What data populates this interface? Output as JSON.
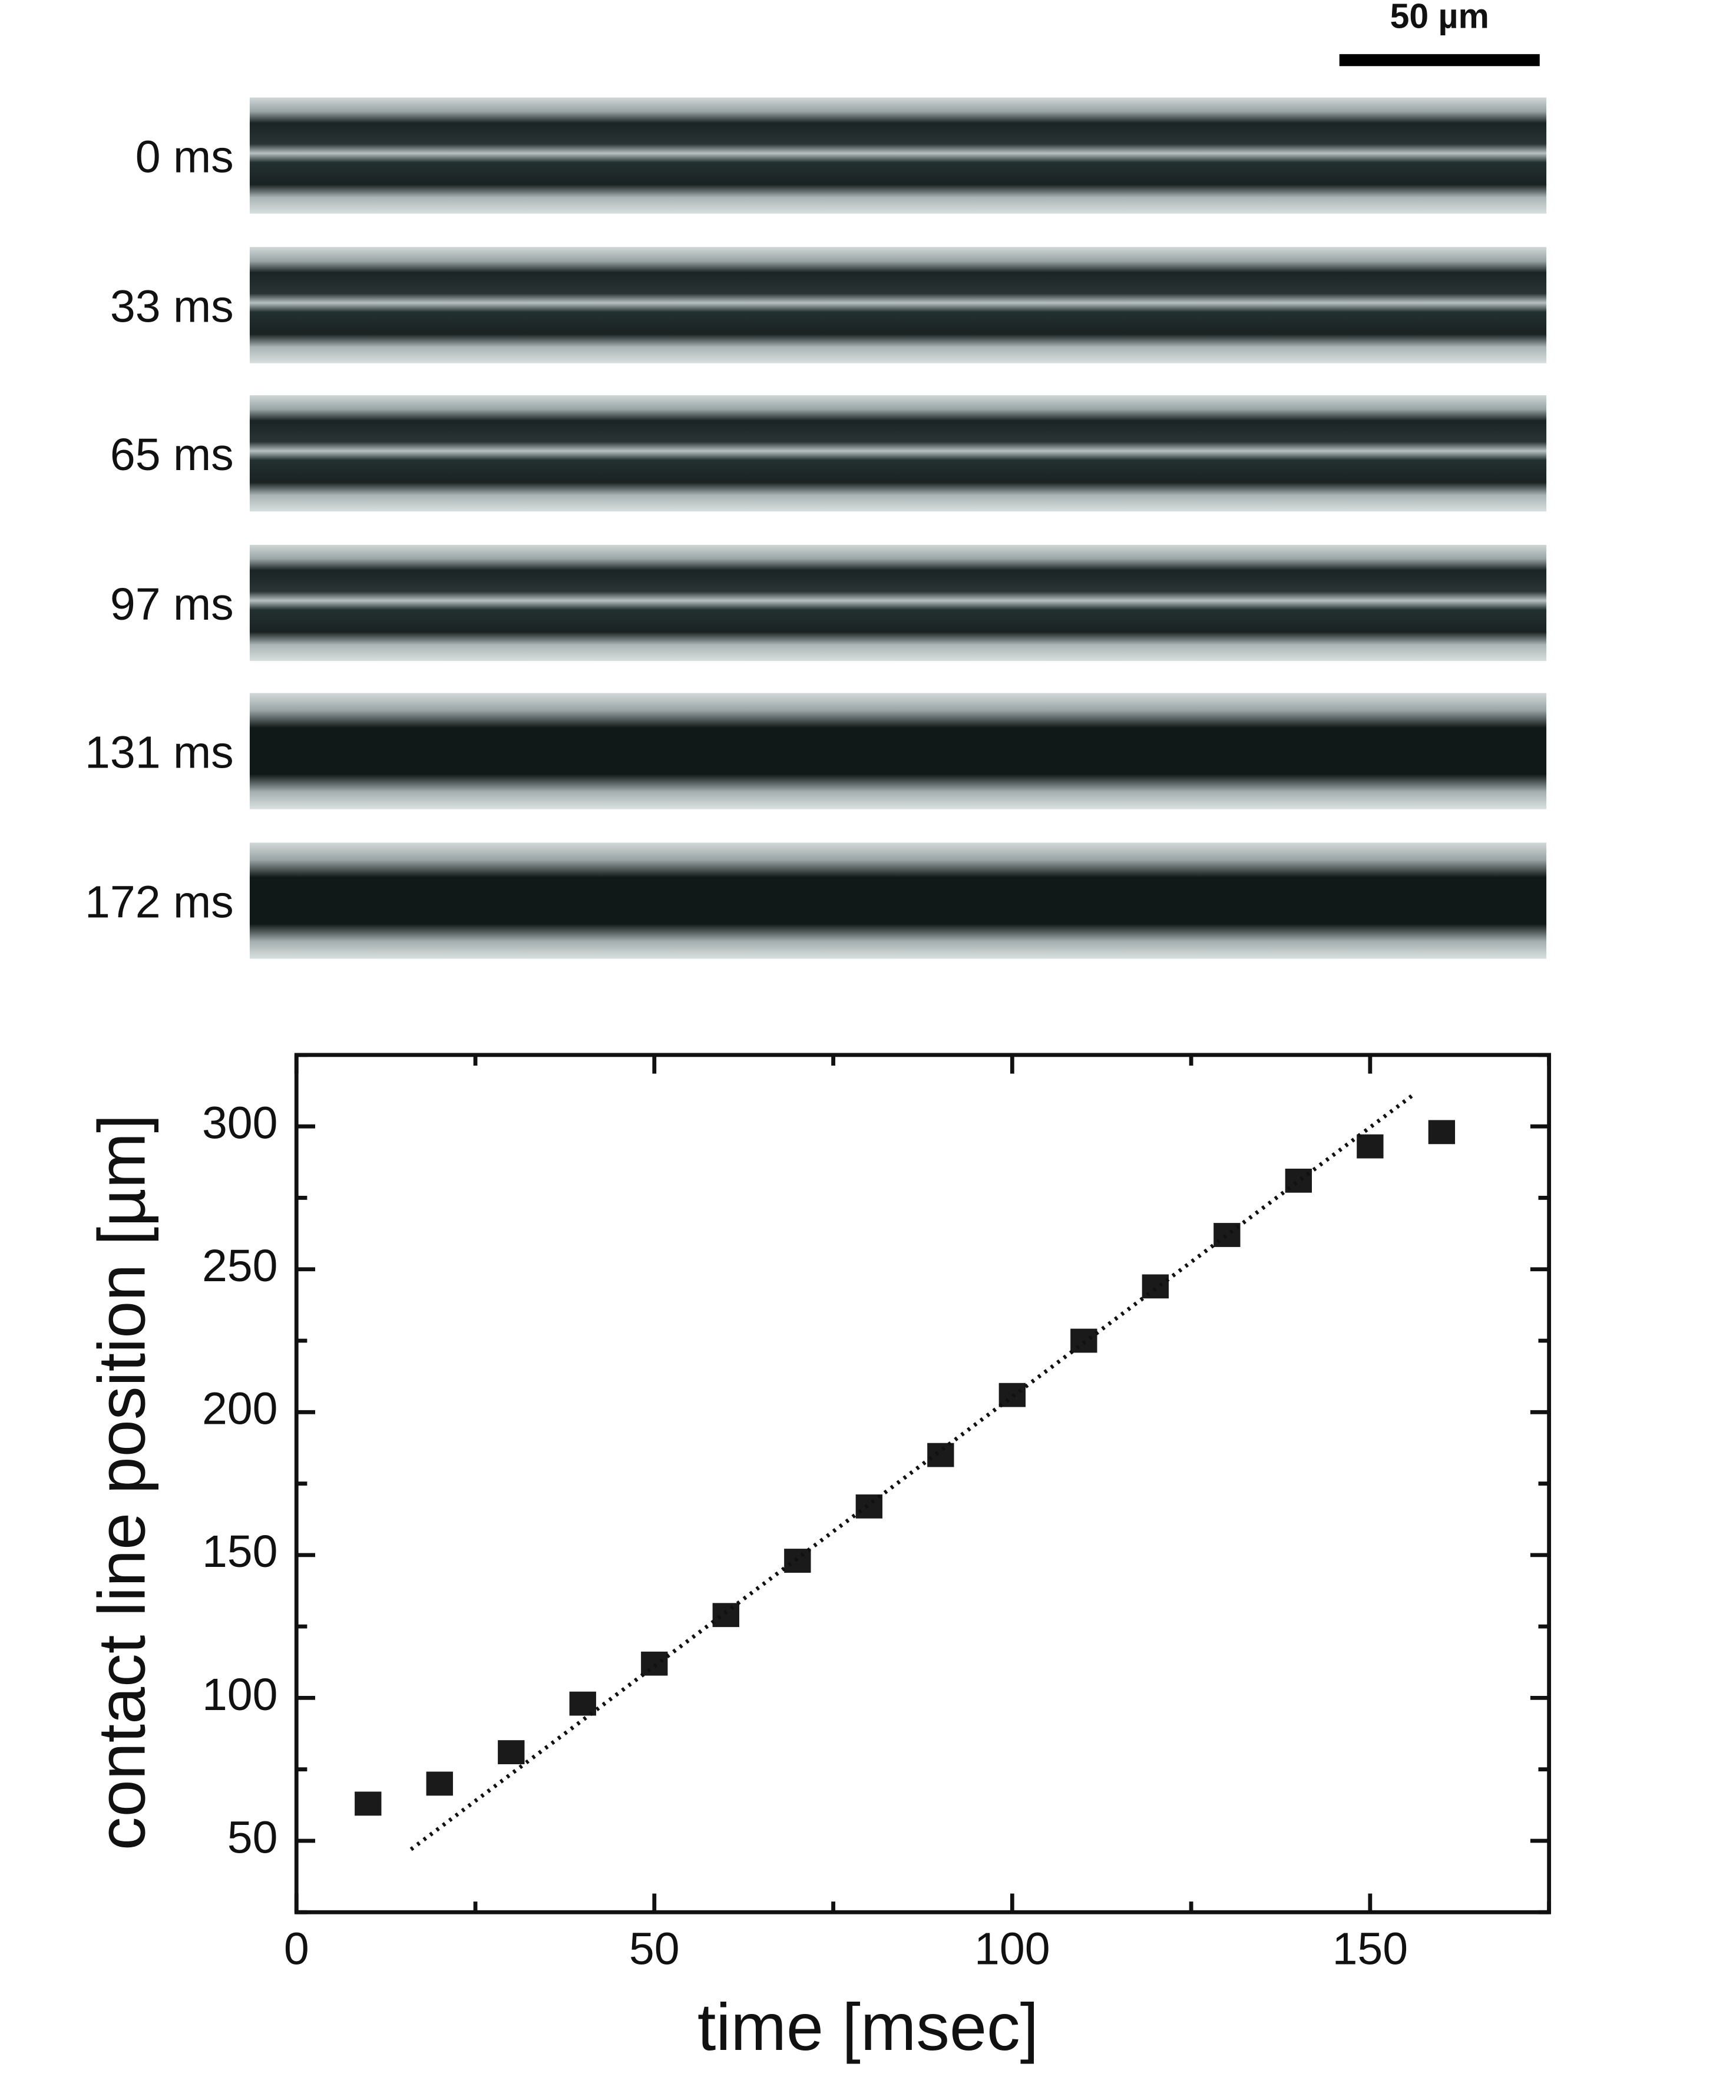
{
  "scale_bar": "50 µm",
  "frames": {
    "labels": [
      "0 ms",
      "33 ms",
      "65 ms",
      "97 ms",
      "131 ms",
      "172 ms"
    ]
  },
  "chart_data": {
    "type": "scatter",
    "x_label": "time [msec]",
    "y_label": "contact line position [µm]",
    "xlim": [
      0,
      175
    ],
    "ylim": [
      25,
      325
    ],
    "xticks": [
      0,
      50,
      100,
      150
    ],
    "yticks": [
      50,
      100,
      150,
      200,
      250,
      300
    ],
    "xminorticks": [
      25,
      75,
      125,
      175
    ],
    "yminorticks": [
      25,
      75,
      125,
      175,
      225,
      275,
      325
    ],
    "grid": false,
    "series": [
      {
        "marker": "square",
        "color": "#1a1a1a",
        "x": [
          10,
          20,
          30,
          40,
          50,
          60,
          70,
          80,
          90,
          100,
          110,
          120,
          130,
          140,
          150,
          160
        ],
        "values": [
          63,
          70,
          81,
          98,
          112,
          129,
          148,
          167,
          185,
          206,
          225,
          244,
          262,
          281,
          293,
          298
        ]
      },
      {
        "marker": "dotted-line",
        "color": "#111111",
        "x": [
          16,
          156
        ],
        "values": [
          47,
          311
        ]
      }
    ]
  }
}
